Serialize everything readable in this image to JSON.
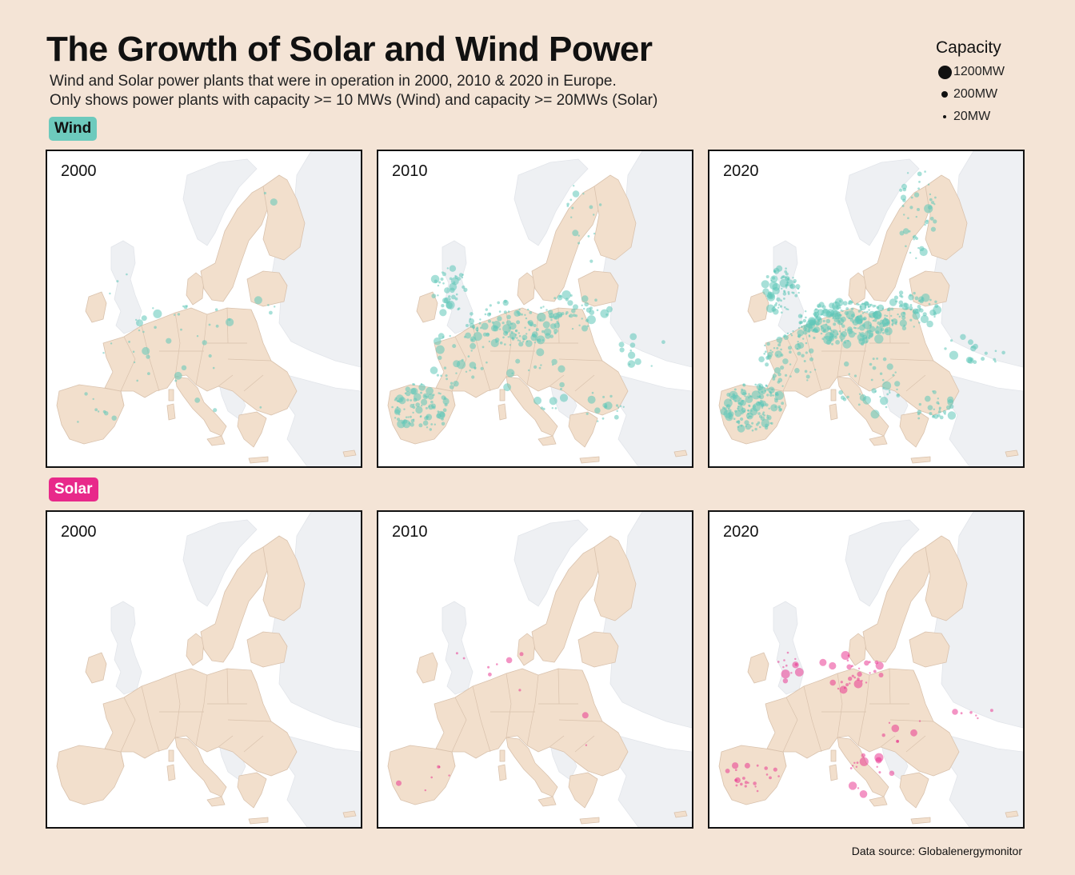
{
  "title": "The Growth of Solar and Wind Power",
  "subtitle": {
    "line1": "Wind and Solar power plants that were in operation in 2000, 2010 & 2020 in Europe.",
    "line2": "Only shows power plants with capacity >= 10 MWs (Wind) and capacity >= 20MWs (Solar)"
  },
  "legend": {
    "title": "Capacity",
    "items": [
      {
        "label": "1200MW",
        "mw": 1200
      },
      {
        "label": "200MW",
        "mw": 200
      },
      {
        "label": "20MW",
        "mw": 20
      }
    ]
  },
  "sections": {
    "wind": {
      "label": "Wind",
      "color": "#5fc6b8"
    },
    "solar": {
      "label": "Solar",
      "color": "#e8298a"
    }
  },
  "colors": {
    "background": "#f4e4d6",
    "eu_land": "#f2dfcc",
    "non_eu_land": "#eef0f3",
    "border": "#d9c2ad"
  },
  "panels": [
    {
      "section": "wind",
      "year": "2000",
      "density": 0.08
    },
    {
      "section": "wind",
      "year": "2010",
      "density": 0.55
    },
    {
      "section": "wind",
      "year": "2020",
      "density": 1.0
    },
    {
      "section": "solar",
      "year": "2000",
      "density": 0
    },
    {
      "section": "solar",
      "year": "2010",
      "density": 0.06
    },
    {
      "section": "solar",
      "year": "2020",
      "density": 0.35
    }
  ],
  "source": "Data source: Globalenergymonitor"
}
